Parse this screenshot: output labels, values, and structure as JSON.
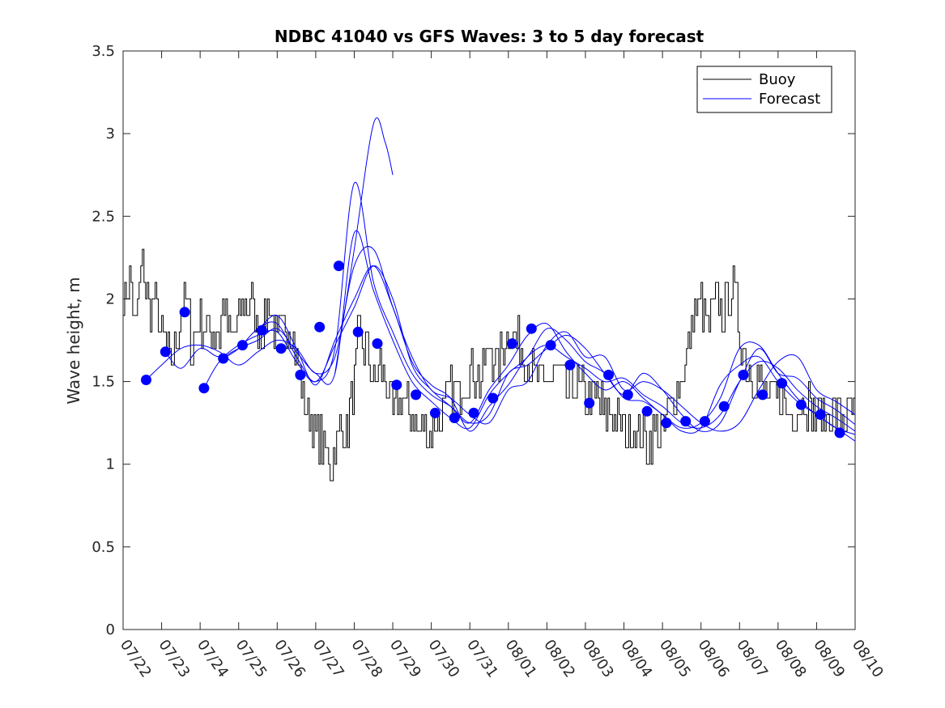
{
  "chart_data": {
    "type": "line",
    "title": "NDBC 41040 vs GFS Waves: 3 to 5 day forecast",
    "xlabel": "",
    "ylabel": "Wave height, m",
    "xlim": [
      "07/22",
      "08/10"
    ],
    "ylim": [
      0,
      3.5
    ],
    "grid": false,
    "legend_position": "top-right",
    "x_ticks": [
      "07/22",
      "07/23",
      "07/24",
      "07/25",
      "07/26",
      "07/27",
      "07/28",
      "07/29",
      "07/30",
      "07/31",
      "08/01",
      "08/02",
      "08/03",
      "08/04",
      "08/05",
      "08/06",
      "08/07",
      "08/08",
      "08/09",
      "08/10"
    ],
    "y_ticks": [
      "0",
      "0.5",
      "1",
      "1.5",
      "2",
      "2.5",
      "3",
      "3.5"
    ],
    "colors": {
      "buoy": "#000000",
      "forecast": "#0000ff"
    },
    "series": [
      {
        "name": "Buoy",
        "x_days": [
          0.0,
          0.2,
          0.3,
          0.5,
          0.7,
          0.8,
          1.0,
          1.2,
          1.5,
          1.6,
          1.8,
          2.0,
          2.2,
          2.5,
          2.6,
          2.8,
          3.0,
          3.3,
          3.5,
          3.7,
          3.8,
          4.0,
          4.2,
          4.4,
          4.6,
          4.8,
          5.0,
          5.2,
          5.4,
          5.6,
          5.8,
          6.0,
          6.1,
          6.3,
          6.5,
          6.7,
          6.9,
          7.0,
          7.2,
          7.5,
          7.7,
          8.0,
          8.3,
          8.5,
          8.7,
          9.0,
          9.3,
          9.5,
          9.7,
          10.0,
          10.3,
          10.5,
          10.7,
          11.0,
          11.3,
          11.5,
          11.7,
          12.0,
          12.3,
          12.5,
          12.7,
          13.0,
          13.3,
          13.6,
          13.8,
          14.0,
          14.3,
          14.6,
          14.8,
          15.0,
          15.2,
          15.4,
          15.6,
          15.8,
          16.0,
          16.2,
          16.5,
          16.7,
          16.9,
          17.1,
          17.3,
          17.5,
          17.7,
          17.9,
          18.1,
          18.3,
          18.5,
          18.7,
          19.0
        ],
        "values": [
          2.0,
          2.1,
          1.8,
          2.2,
          1.9,
          2.0,
          1.8,
          1.6,
          1.9,
          2.0,
          1.7,
          1.9,
          1.8,
          1.8,
          2.0,
          1.7,
          1.9,
          2.0,
          1.8,
          1.9,
          2.0,
          1.7,
          1.9,
          1.8,
          1.5,
          1.3,
          1.2,
          1.1,
          1.0,
          1.2,
          1.2,
          1.5,
          1.8,
          1.7,
          1.5,
          1.6,
          1.4,
          1.3,
          1.4,
          1.3,
          1.2,
          1.2,
          1.3,
          1.5,
          1.4,
          1.6,
          1.5,
          1.7,
          1.6,
          1.8,
          1.7,
          1.6,
          1.5,
          1.5,
          1.6,
          1.4,
          1.5,
          1.4,
          1.4,
          1.3,
          1.3,
          1.2,
          1.2,
          1.1,
          1.2,
          1.2,
          1.4,
          1.6,
          1.9,
          2.0,
          1.8,
          2.0,
          1.9,
          2.1,
          1.8,
          1.6,
          1.5,
          1.4,
          1.4,
          1.4,
          1.3,
          1.3,
          1.4,
          1.3,
          1.3,
          1.3,
          1.3,
          1.3,
          1.3
        ]
      },
      {
        "name": "Forecast",
        "runs": [
          {
            "x_days": [
              0.6,
              1.0,
              1.5,
              2.0,
              2.5,
              3.0,
              3.5,
              4.0,
              4.5,
              5.0,
              5.5,
              6.0,
              6.5,
              7.0,
              7.5,
              8.0,
              8.5,
              9.0,
              9.5,
              10.0,
              10.5,
              11.0,
              11.5,
              12.0,
              12.5,
              13.0,
              13.5,
              14.0,
              14.5,
              15.0,
              15.5,
              16.0,
              16.5,
              17.0,
              17.5,
              18.0,
              18.5,
              19.0
            ],
            "values": [
              1.51,
              1.6,
              1.7,
              1.72,
              1.68,
              1.6,
              1.68,
              1.75,
              1.7,
              1.55,
              1.65,
              2.2,
              2.3,
              1.95,
              1.65,
              1.45,
              1.4,
              1.3,
              1.25,
              1.45,
              1.5,
              1.72,
              1.8,
              1.65,
              1.65,
              1.45,
              1.5,
              1.45,
              1.35,
              1.25,
              1.2,
              1.25,
              1.45,
              1.62,
              1.65,
              1.45,
              1.38,
              1.3
            ]
          },
          {
            "x_days": [
              1.1,
              1.5,
              2.0,
              2.5,
              3.0,
              3.5,
              4.0,
              4.5,
              5.0,
              5.5,
              6.0,
              6.5,
              7.0,
              7.5,
              8.0,
              8.5,
              9.0,
              9.5,
              10.0,
              10.5,
              11.0,
              11.5,
              12.0,
              12.5,
              13.0,
              13.5,
              14.0,
              14.5,
              15.0,
              15.5,
              16.0,
              16.5,
              17.0,
              17.5,
              18.0,
              18.5,
              19.0
            ],
            "values": [
              1.68,
              1.58,
              1.7,
              1.65,
              1.72,
              1.78,
              1.8,
              1.62,
              1.5,
              1.7,
              2.7,
              2.1,
              1.8,
              1.55,
              1.42,
              1.35,
              1.25,
              1.3,
              1.55,
              1.6,
              1.7,
              1.78,
              1.7,
              1.55,
              1.42,
              1.55,
              1.45,
              1.3,
              1.2,
              1.25,
              1.5,
              1.7,
              1.55,
              1.52,
              1.4,
              1.33,
              1.24
            ]
          },
          {
            "x_days": [
              2.1,
              2.5,
              3.0,
              3.5,
              4.0,
              4.5,
              5.0,
              5.5,
              6.0,
              6.5,
              7.0,
              7.5,
              8.0,
              8.5,
              9.0,
              9.5,
              10.0,
              10.5,
              11.0,
              11.5,
              12.0,
              12.5,
              13.0,
              13.5,
              14.0,
              14.5,
              15.0,
              15.5,
              16.0,
              16.5,
              17.0,
              17.5,
              18.0,
              18.5,
              19.0
            ],
            "values": [
              1.46,
              1.62,
              1.7,
              1.75,
              1.82,
              1.68,
              1.55,
              1.55,
              2.4,
              2.05,
              1.75,
              1.5,
              1.38,
              1.28,
              1.22,
              1.42,
              1.55,
              1.65,
              1.82,
              1.75,
              1.62,
              1.55,
              1.4,
              1.38,
              1.3,
              1.2,
              1.22,
              1.48,
              1.6,
              1.65,
              1.5,
              1.38,
              1.3,
              1.22,
              1.18
            ]
          },
          {
            "x_days": [
              2.6,
              3.0,
              3.5,
              4.0,
              4.5,
              5.0,
              5.5,
              6.0,
              6.5,
              7.0,
              7.5,
              8.0,
              8.5,
              9.0,
              9.5,
              10.0,
              10.5,
              11.0,
              11.5,
              12.0,
              12.5,
              13.0,
              13.5,
              14.0,
              14.5,
              15.0,
              15.5,
              16.0,
              16.5,
              17.0,
              17.5,
              18.0,
              18.5,
              19.0
            ],
            "values": [
              1.64,
              1.7,
              1.82,
              1.85,
              1.65,
              1.5,
              1.72,
              1.95,
              2.2,
              2.0,
              1.6,
              1.45,
              1.35,
              1.25,
              1.45,
              1.6,
              1.78,
              1.85,
              1.68,
              1.55,
              1.45,
              1.5,
              1.4,
              1.3,
              1.22,
              1.25,
              1.4,
              1.7,
              1.72,
              1.55,
              1.4,
              1.3,
              1.22,
              1.14
            ]
          },
          {
            "x_days": [
              3.5,
              4.0,
              4.5,
              5.0,
              5.5,
              6.0,
              6.5,
              7.0,
              7.5,
              8.0,
              8.5,
              9.0,
              9.5,
              10.0,
              10.5,
              11.0,
              11.5,
              12.0,
              12.5,
              13.0,
              13.5,
              14.0,
              14.5,
              15.0,
              15.5,
              16.0,
              16.5,
              17.0,
              17.5,
              18.0,
              18.5,
              19.0
            ],
            "values": [
              1.81,
              1.9,
              1.7,
              1.48,
              1.75,
              2.0,
              2.2,
              1.95,
              1.62,
              1.48,
              1.4,
              1.2,
              1.35,
              1.48,
              1.65,
              1.72,
              1.65,
              1.58,
              1.5,
              1.52,
              1.42,
              1.35,
              1.25,
              1.22,
              1.3,
              1.5,
              1.62,
              1.58,
              1.45,
              1.35,
              1.28,
              1.2
            ]
          },
          {
            "x_days": [
              5.5,
              6.0,
              6.5,
              6.8,
              7.0
            ],
            "values": [
              1.55,
              2.3,
              3.06,
              2.95,
              2.75
            ]
          }
        ],
        "markers": {
          "x_days": [
            0.6,
            1.1,
            1.6,
            2.1,
            2.6,
            3.1,
            3.6,
            4.1,
            4.6,
            5.1,
            5.6,
            6.1,
            6.6,
            7.1,
            7.6,
            8.1,
            8.6,
            9.1,
            9.6,
            10.1,
            10.6,
            11.1,
            11.6,
            12.1,
            12.6,
            13.1,
            13.6,
            14.1,
            14.6,
            15.1,
            15.6,
            16.1,
            16.6,
            17.1,
            17.6,
            18.1,
            18.6
          ],
          "values": [
            1.51,
            1.68,
            1.92,
            1.46,
            1.64,
            1.72,
            1.81,
            1.7,
            1.54,
            1.83,
            2.2,
            1.8,
            1.73,
            1.48,
            1.42,
            1.31,
            1.28,
            1.31,
            1.4,
            1.73,
            1.82,
            1.72,
            1.6,
            1.37,
            1.54,
            1.42,
            1.32,
            1.25,
            1.26,
            1.26,
            1.35,
            1.54,
            1.42,
            1.49,
            1.36,
            1.3,
            1.19
          ]
        }
      }
    ]
  }
}
